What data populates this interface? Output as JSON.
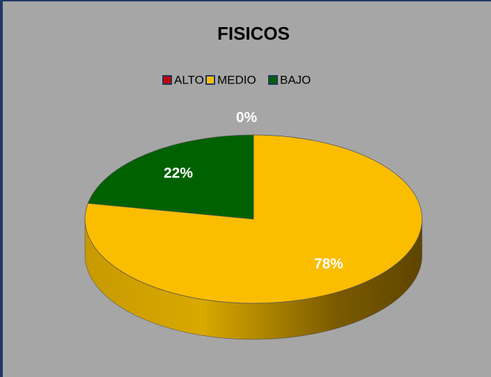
{
  "chart_data": {
    "type": "pie",
    "title": "FISICOS",
    "categories": [
      "ALTO",
      "MEDIO",
      "BAJO"
    ],
    "values": [
      0,
      78,
      22
    ],
    "value_labels": [
      "0%",
      "78%",
      "22%"
    ],
    "colors": [
      "#c00000",
      "#fbbd00",
      "#006100"
    ],
    "legend": "top"
  }
}
